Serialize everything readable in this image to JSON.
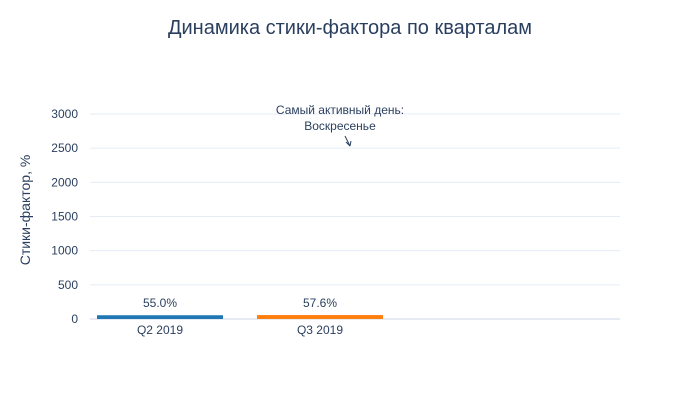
{
  "chart_data": {
    "type": "bar",
    "title": "Динамика стики-фактора по кварталам",
    "xlabel": "",
    "ylabel": "Стики-фактор, %",
    "categories": [
      "Q2 2019",
      "Q3 2019"
    ],
    "values": [
      55.0,
      57.6
    ],
    "data_labels": [
      "55.0%",
      "57.6%"
    ],
    "bar_colors": [
      "#1f77b4",
      "#ff7f0e"
    ],
    "ylim": [
      0,
      3000
    ],
    "yticks": [
      0,
      500,
      1000,
      1500,
      2000,
      2500,
      3000
    ],
    "grid": true,
    "annotation": {
      "lines": [
        "Самый активный день:",
        "Воскресенье"
      ]
    }
  }
}
